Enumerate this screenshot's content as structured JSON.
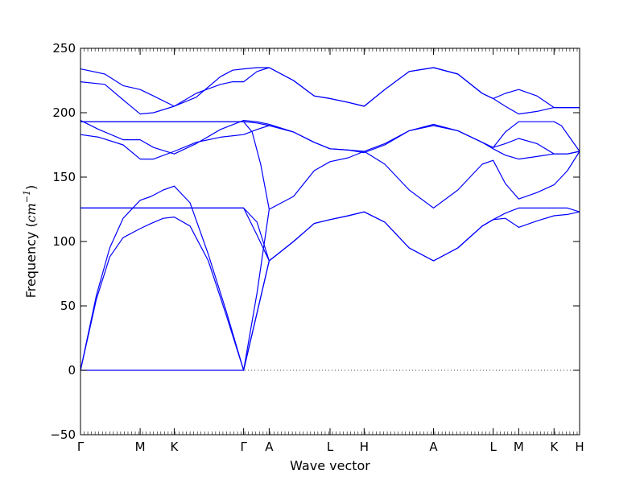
{
  "chart_data": {
    "type": "line",
    "xlabel": "Wave vector",
    "ylabel_prefix": "Frequency (",
    "ylabel_unit_base": "cm",
    "ylabel_unit_exp": "−1",
    "ylabel_suffix": ")",
    "ylim": [
      -50,
      250
    ],
    "yticks": [
      -50,
      0,
      50,
      100,
      150,
      200,
      250
    ],
    "xlim": [
      0,
      4.1
    ],
    "xticks": [
      {
        "label": "Γ",
        "x": 0
      },
      {
        "label": "M",
        "x": 0.49
      },
      {
        "label": "K",
        "x": 0.77
      },
      {
        "label": "Γ",
        "x": 1.34
      },
      {
        "label": "A",
        "x": 1.55
      },
      {
        "label": "L",
        "x": 2.05
      },
      {
        "label": "H",
        "x": 2.33
      },
      {
        "label": "A",
        "x": 2.9
      },
      {
        "label": "L",
        "x": 3.39
      },
      {
        "label": "M",
        "x": 3.6
      },
      {
        "label": "K",
        "x": 3.89
      },
      {
        "label": "H",
        "x": 4.1
      }
    ],
    "zero_line": true,
    "line_color": "#0000ff",
    "series": [
      {
        "x": [
          0,
          0.13,
          0.24,
          0.35,
          0.49,
          0.58,
          0.68,
          0.77,
          0.9,
          1.05,
          1.2,
          1.34,
          1.55,
          1.75,
          1.92,
          2.05,
          2.2,
          2.33,
          2.5,
          2.7,
          2.9,
          3.1,
          3.3,
          3.39,
          3.49,
          3.6,
          3.75,
          3.89,
          4.0,
          4.1
        ],
        "y": [
          0,
          55,
          88,
          103,
          110,
          114,
          118,
          119,
          112,
          85,
          42,
          0,
          85,
          100,
          114,
          117,
          120,
          123,
          115,
          95,
          85,
          95,
          112,
          117,
          118,
          111,
          116,
          120,
          121,
          123
        ]
      },
      {
        "x": [
          0,
          0.13,
          0.24,
          0.35,
          0.49,
          0.58,
          0.68,
          0.77,
          0.9,
          1.05,
          1.2,
          1.34,
          1.55,
          1.75,
          1.92,
          2.05,
          2.2,
          2.33,
          2.5,
          2.7,
          2.9,
          3.1,
          3.3,
          3.39,
          3.49,
          3.6,
          3.75,
          3.89,
          4.0,
          4.1
        ],
        "y": [
          0,
          58,
          95,
          118,
          132,
          135,
          140,
          143,
          130,
          90,
          45,
          0,
          85,
          100,
          114,
          117,
          120,
          123,
          115,
          95,
          85,
          95,
          112,
          117,
          122,
          126,
          126,
          126,
          126,
          123
        ]
      },
      {
        "x": [
          0,
          0.2,
          0.49,
          0.77,
          1.05,
          1.34,
          1.45,
          1.55
        ],
        "y": [
          126,
          126,
          126,
          126,
          126,
          126,
          115,
          85
        ]
      },
      {
        "x": [
          0,
          0.2,
          0.49,
          0.77,
          1.05,
          1.34,
          1.45,
          1.55
        ],
        "y": [
          126,
          126,
          126,
          126,
          126,
          126,
          105,
          85
        ]
      },
      {
        "x": [
          0,
          1.25,
          1.34,
          1.45,
          1.55,
          1.75,
          1.92,
          2.05,
          2.2,
          2.33,
          2.5,
          2.7,
          2.9,
          3.1,
          3.3,
          3.39,
          3.49,
          3.6,
          3.75,
          3.89,
          4.0,
          4.1
        ],
        "y": [
          0,
          0,
          0,
          60,
          125,
          135,
          155,
          162,
          165,
          170,
          160,
          140,
          126,
          140,
          160,
          163,
          145,
          133,
          138,
          144,
          155,
          170
        ]
      },
      {
        "x": [
          0,
          0.15,
          0.35,
          0.49,
          0.6,
          0.77,
          0.95,
          1.15,
          1.34,
          1.45,
          1.55,
          1.75,
          1.92,
          2.05,
          2.2,
          2.33,
          2.5,
          2.7,
          2.9,
          3.1,
          3.3,
          3.39,
          3.49,
          3.6,
          3.75,
          3.89,
          4.0,
          4.1
        ],
        "y": [
          183,
          181,
          175,
          164,
          164,
          170,
          177,
          181,
          183,
          187,
          190,
          185,
          177,
          172,
          171,
          169,
          175,
          186,
          190,
          186,
          177,
          172,
          167,
          164,
          166,
          168,
          168,
          170
        ]
      },
      {
        "x": [
          0,
          0.15,
          0.35,
          0.49,
          0.6,
          0.77,
          0.95,
          1.15,
          1.34,
          1.45,
          1.55,
          1.75,
          1.92,
          2.05,
          2.2,
          2.33,
          2.5,
          2.7,
          2.9,
          3.1,
          3.3,
          3.39,
          3.49,
          3.6,
          3.75,
          3.89,
          4.0,
          4.1
        ],
        "y": [
          194,
          187,
          179,
          179,
          173,
          168,
          176,
          187,
          194,
          193,
          191,
          185,
          177,
          172,
          171,
          170,
          176,
          186,
          191,
          186,
          177,
          173,
          176,
          180,
          176,
          168,
          168,
          170
        ]
      },
      {
        "x": [
          0,
          0.2,
          0.49,
          0.77,
          1.05,
          1.34,
          1.45,
          1.55
        ],
        "y": [
          193,
          193,
          193,
          193,
          193,
          193,
          192,
          190
        ]
      },
      {
        "x": [
          0,
          1.0,
          1.2,
          1.34,
          1.41,
          1.48,
          1.55
        ],
        "y": [
          193,
          193,
          193,
          193,
          185,
          160,
          125
        ]
      },
      {
        "x": [
          0,
          0.2,
          0.35,
          0.49,
          0.6,
          0.77,
          0.95,
          1.15,
          1.25,
          1.34,
          1.45,
          1.55,
          1.75,
          1.92,
          2.05,
          2.2,
          2.33,
          2.5,
          2.7,
          2.9,
          3.1,
          3.3,
          3.39,
          3.49,
          3.6,
          3.75,
          3.89,
          4.0,
          4.1
        ],
        "y": [
          224,
          222,
          210,
          199,
          200,
          205,
          215,
          222,
          224,
          224,
          232,
          235,
          225,
          213,
          211,
          208,
          205,
          218,
          232,
          235,
          230,
          215,
          211,
          205,
          199,
          201,
          204,
          204,
          204
        ]
      },
      {
        "x": [
          0,
          0.2,
          0.35,
          0.49,
          0.6,
          0.77,
          0.95,
          1.15,
          1.25,
          1.34,
          1.45,
          1.55,
          1.75,
          1.92,
          2.05,
          2.2,
          2.33,
          2.5,
          2.7,
          2.9,
          3.1,
          3.3,
          3.39,
          3.49,
          3.6,
          3.75,
          3.89,
          4.0,
          4.1
        ],
        "y": [
          234,
          230,
          221,
          218,
          213,
          205,
          212,
          228,
          233,
          234,
          235,
          235,
          225,
          213,
          211,
          208,
          205,
          218,
          232,
          235,
          230,
          215,
          211,
          215,
          218,
          213,
          204,
          204,
          204
        ]
      },
      {
        "x": [
          3.39,
          3.49,
          3.6,
          3.75,
          3.89,
          3.95,
          4.1
        ],
        "y": [
          173,
          185,
          193,
          193,
          193,
          190,
          170
        ]
      }
    ]
  }
}
